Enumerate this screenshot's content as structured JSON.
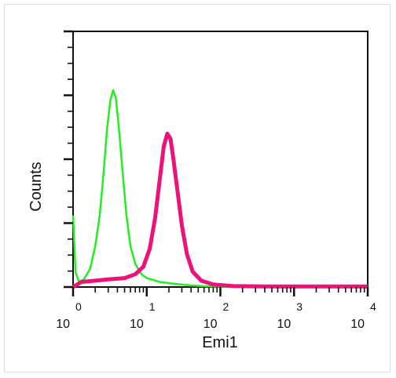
{
  "chart_data": {
    "type": "line",
    "title": "",
    "xlabel": "Emi1",
    "ylabel": "Counts",
    "x_scale": "log",
    "xlim": [
      1,
      10000
    ],
    "ylim": [
      0,
      1
    ],
    "x_ticks": [
      {
        "base": "10",
        "exp": "0",
        "value": 1
      },
      {
        "base": "10",
        "exp": "1",
        "value": 10
      },
      {
        "base": "10",
        "exp": "2",
        "value": 100
      },
      {
        "base": "10",
        "exp": "3",
        "value": 1000
      },
      {
        "base": "10",
        "exp": "4",
        "value": 10000
      }
    ],
    "y_ticks_labeled": false,
    "grid": false,
    "legend": "none",
    "series": [
      {
        "color": "#22ee22",
        "points": [
          [
            1.0,
            0.28
          ],
          [
            1.08,
            0.06
          ],
          [
            1.2,
            0.02
          ],
          [
            1.4,
            0.03
          ],
          [
            1.7,
            0.07
          ],
          [
            2.0,
            0.16
          ],
          [
            2.3,
            0.28
          ],
          [
            2.6,
            0.45
          ],
          [
            2.9,
            0.62
          ],
          [
            3.2,
            0.73
          ],
          [
            3.5,
            0.77
          ],
          [
            3.8,
            0.74
          ],
          [
            4.2,
            0.62
          ],
          [
            4.7,
            0.45
          ],
          [
            5.3,
            0.28
          ],
          [
            6.0,
            0.16
          ],
          [
            7.0,
            0.09
          ],
          [
            8.5,
            0.05
          ],
          [
            10,
            0.035
          ],
          [
            15,
            0.02
          ],
          [
            25,
            0.012
          ],
          [
            40,
            0.006
          ],
          [
            60,
            0.003
          ],
          [
            100,
            0.001
          ],
          [
            10000,
            0.0
          ]
        ]
      },
      {
        "color": "#ee1177",
        "points": [
          [
            1.0,
            0.0
          ],
          [
            1.3,
            0.02
          ],
          [
            2.0,
            0.025
          ],
          [
            3.0,
            0.03
          ],
          [
            5.0,
            0.035
          ],
          [
            7.0,
            0.05
          ],
          [
            9.0,
            0.08
          ],
          [
            11,
            0.15
          ],
          [
            13,
            0.27
          ],
          [
            15,
            0.42
          ],
          [
            17,
            0.55
          ],
          [
            19,
            0.6
          ],
          [
            21,
            0.58
          ],
          [
            23,
            0.5
          ],
          [
            26,
            0.38
          ],
          [
            30,
            0.24
          ],
          [
            35,
            0.13
          ],
          [
            42,
            0.06
          ],
          [
            55,
            0.025
          ],
          [
            80,
            0.01
          ],
          [
            150,
            0.004
          ],
          [
            400,
            0.002
          ],
          [
            10000,
            0.002
          ]
        ]
      }
    ]
  }
}
